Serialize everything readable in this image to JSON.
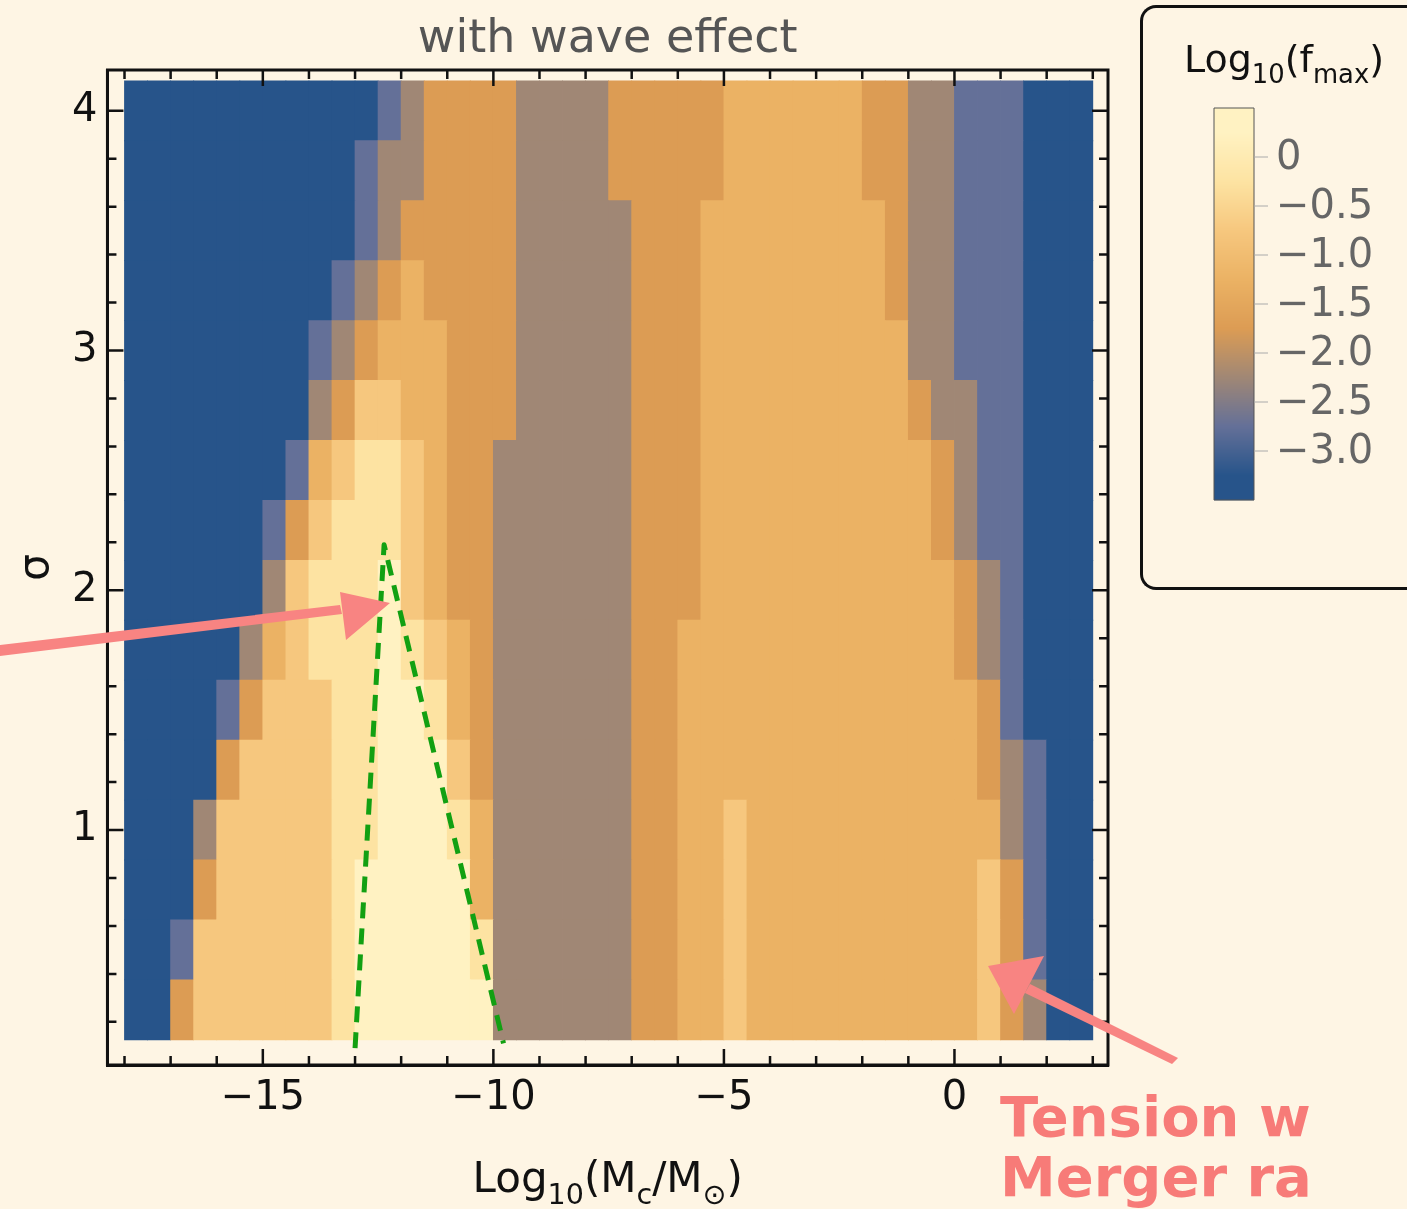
{
  "chart_data": {
    "type": "heatmap",
    "title": "with wave effect",
    "xlabel": "Log$_{10}$(M$_{c}$/M$_{⊙}$)",
    "ylabel": "σ",
    "clabel": "Log$_{10}$(f$_{max}$)",
    "annotations": [
      "Tension w",
      "Merger ra"
    ],
    "xlim": [
      -18.37,
      3.33
    ],
    "ylim": [
      0.02,
      4.17
    ],
    "xticks": [
      {
        "value": -18,
        "label": null
      },
      {
        "value": -17,
        "label": null
      },
      {
        "value": -16,
        "label": null
      },
      {
        "value": -15,
        "label": "−15"
      },
      {
        "value": -14,
        "label": null
      },
      {
        "value": -13,
        "label": null
      },
      {
        "value": -12,
        "label": null
      },
      {
        "value": -11,
        "label": null
      },
      {
        "value": -10,
        "label": "−10"
      },
      {
        "value": -9,
        "label": null
      },
      {
        "value": -8,
        "label": null
      },
      {
        "value": -7,
        "label": null
      },
      {
        "value": -6,
        "label": null
      },
      {
        "value": -5,
        "label": "−5"
      },
      {
        "value": -4,
        "label": null
      },
      {
        "value": -3,
        "label": null
      },
      {
        "value": -2,
        "label": null
      },
      {
        "value": -1,
        "label": null
      },
      0,
      {
        "value": 1,
        "label": null
      },
      {
        "value": 2,
        "label": null
      },
      {
        "value": 3,
        "label": null
      }
    ],
    "yticks": [
      {
        "value": 0.2,
        "label": null
      },
      {
        "value": 0.4,
        "label": null
      },
      {
        "value": 0.6,
        "label": null
      },
      {
        "value": 0.8,
        "label": null
      },
      1,
      {
        "value": 1.2,
        "label": null
      },
      {
        "value": 1.4,
        "label": null
      },
      {
        "value": 1.6,
        "label": null
      },
      {
        "value": 1.8,
        "label": null
      },
      2,
      {
        "value": 2.2,
        "label": null
      },
      {
        "value": 2.4,
        "label": null
      },
      {
        "value": 2.6,
        "label": null
      },
      {
        "value": 2.8,
        "label": null
      },
      3,
      {
        "value": 3.2,
        "label": null
      },
      {
        "value": 3.4,
        "label": null
      },
      {
        "value": 3.6,
        "label": null
      },
      {
        "value": 3.8,
        "label": null
      },
      4
    ],
    "clim": [
      -3.5,
      0.5
    ],
    "cticks": [
      0,
      {
        "value": -0.5,
        "label": "−0.5"
      },
      {
        "value": -1,
        "label": "−1.0"
      },
      {
        "value": -1.5,
        "label": "−1.5"
      },
      {
        "value": -2,
        "label": "−2.0"
      },
      {
        "value": -2.5,
        "label": "−2.5"
      },
      {
        "value": -3,
        "label": "−3.0"
      }
    ],
    "colors": [
      "#27548a",
      "#647098",
      "#a08775",
      "#dc9c54",
      "#ebb264",
      "#f6c77e",
      "#fde3a2",
      "#fff2c2"
    ],
    "x": [
      -17.75,
      -17.25,
      -16.75,
      -16.25,
      -15.75,
      -15.25,
      -14.75,
      -14.25,
      -13.75,
      -13.25,
      -12.75,
      -12.25,
      -11.75,
      -11.25,
      -10.75,
      -10.25,
      -9.75,
      -9.25,
      -8.75,
      -8.25,
      -7.75,
      -7.25,
      -6.75,
      -6.25,
      -5.75,
      -5.25,
      -4.75,
      -4.25,
      -3.75,
      -3.25,
      -2.75,
      -2.25,
      -1.75,
      -1.25,
      -0.75,
      -0.25,
      0.25,
      0.75,
      1.25,
      1.75,
      2.25,
      2.75
    ],
    "y": [
      4,
      3.75,
      3.5,
      3.25,
      3,
      2.75,
      2.5,
      2.25,
      2,
      1.75,
      1.5,
      1.25,
      1,
      0.75,
      0.5,
      0.25
    ],
    "cells": [
      [
        -3.25,
        -3.25,
        -3.25,
        -3.25,
        -3.25,
        -3.25,
        -3.25,
        -3.25,
        -3.25,
        -3.25,
        -3.25,
        -2.75,
        -2.25,
        -1.75,
        -1.75,
        -1.75,
        -1.75,
        -2.25,
        -2.25,
        -2.25,
        -2.25,
        -1.75,
        -1.75,
        -1.75,
        -1.75,
        -1.75,
        -1.25,
        -1.25,
        -1.25,
        -1.25,
        -1.25,
        -1.25,
        -1.75,
        -1.75,
        -2.25,
        -2.25,
        -2.75,
        -2.75,
        -2.75,
        -3.25,
        -3.25,
        -3.25
      ],
      [
        -3.25,
        -3.25,
        -3.25,
        -3.25,
        -3.25,
        -3.25,
        -3.25,
        -3.25,
        -3.25,
        -3.25,
        -2.75,
        -2.25,
        -2.25,
        -1.75,
        -1.75,
        -1.75,
        -1.75,
        -2.25,
        -2.25,
        -2.25,
        -2.25,
        -1.75,
        -1.75,
        -1.75,
        -1.75,
        -1.75,
        -1.25,
        -1.25,
        -1.25,
        -1.25,
        -1.25,
        -1.25,
        -1.75,
        -1.75,
        -2.25,
        -2.25,
        -2.75,
        -2.75,
        -2.75,
        -3.25,
        -3.25,
        -3.25
      ],
      [
        -3.25,
        -3.25,
        -3.25,
        -3.25,
        -3.25,
        -3.25,
        -3.25,
        -3.25,
        -3.25,
        -3.25,
        -2.75,
        -2.25,
        -1.75,
        -1.75,
        -1.75,
        -1.75,
        -1.75,
        -2.25,
        -2.25,
        -2.25,
        -2.25,
        -2.25,
        -1.75,
        -1.75,
        -1.75,
        -1.25,
        -1.25,
        -1.25,
        -1.25,
        -1.25,
        -1.25,
        -1.25,
        -1.25,
        -1.75,
        -2.25,
        -2.25,
        -2.75,
        -2.75,
        -2.75,
        -3.25,
        -3.25,
        -3.25
      ],
      [
        -3.25,
        -3.25,
        -3.25,
        -3.25,
        -3.25,
        -3.25,
        -3.25,
        -3.25,
        -3.25,
        -2.75,
        -2.25,
        -1.75,
        -1.25,
        -1.75,
        -1.75,
        -1.75,
        -1.75,
        -2.25,
        -2.25,
        -2.25,
        -2.25,
        -2.25,
        -1.75,
        -1.75,
        -1.75,
        -1.25,
        -1.25,
        -1.25,
        -1.25,
        -1.25,
        -1.25,
        -1.25,
        -1.25,
        -1.75,
        -2.25,
        -2.25,
        -2.75,
        -2.75,
        -2.75,
        -3.25,
        -3.25,
        -3.25
      ],
      [
        -3.25,
        -3.25,
        -3.25,
        -3.25,
        -3.25,
        -3.25,
        -3.25,
        -3.25,
        -2.75,
        -2.25,
        -1.75,
        -1.25,
        -1.25,
        -1.25,
        -1.75,
        -1.75,
        -1.75,
        -2.25,
        -2.25,
        -2.25,
        -2.25,
        -2.25,
        -1.75,
        -1.75,
        -1.75,
        -1.25,
        -1.25,
        -1.25,
        -1.25,
        -1.25,
        -1.25,
        -1.25,
        -1.25,
        -1.25,
        -2.25,
        -2.25,
        -2.75,
        -2.75,
        -2.75,
        -3.25,
        -3.25,
        -3.25
      ],
      [
        -3.25,
        -3.25,
        -3.25,
        -3.25,
        -3.25,
        -3.25,
        -3.25,
        -3.25,
        -2.25,
        -1.75,
        -0.75,
        -0.75,
        -1.25,
        -1.25,
        -1.75,
        -1.75,
        -1.75,
        -2.25,
        -2.25,
        -2.25,
        -2.25,
        -2.25,
        -1.75,
        -1.75,
        -1.75,
        -1.25,
        -1.25,
        -1.25,
        -1.25,
        -1.25,
        -1.25,
        -1.25,
        -1.25,
        -1.25,
        -1.75,
        -2.25,
        -2.25,
        -2.75,
        -2.75,
        -3.25,
        -3.25,
        -3.25
      ],
      [
        -3.25,
        -3.25,
        -3.25,
        -3.25,
        -3.25,
        -3.25,
        -3.25,
        -2.75,
        -1.25,
        -0.75,
        -0.25,
        -0.25,
        -0.75,
        -1.25,
        -1.75,
        -1.75,
        -2.25,
        -2.25,
        -2.25,
        -2.25,
        -2.25,
        -2.25,
        -1.75,
        -1.75,
        -1.75,
        -1.25,
        -1.25,
        -1.25,
        -1.25,
        -1.25,
        -1.25,
        -1.25,
        -1.25,
        -1.25,
        -1.25,
        -1.75,
        -2.25,
        -2.75,
        -2.75,
        -3.25,
        -3.25,
        -3.25
      ],
      [
        -3.25,
        -3.25,
        -3.25,
        -3.25,
        -3.25,
        -3.25,
        -2.75,
        -1.75,
        -0.75,
        -0.25,
        -0.25,
        -0.25,
        -0.75,
        -1.25,
        -1.75,
        -1.75,
        -2.25,
        -2.25,
        -2.25,
        -2.25,
        -2.25,
        -2.25,
        -1.75,
        -1.75,
        -1.75,
        -1.25,
        -1.25,
        -1.25,
        -1.25,
        -1.25,
        -1.25,
        -1.25,
        -1.25,
        -1.25,
        -1.25,
        -1.75,
        -2.25,
        -2.75,
        -2.75,
        -3.25,
        -3.25,
        -3.25
      ],
      [
        -3.25,
        -3.25,
        -3.25,
        -3.25,
        -3.25,
        -3.25,
        -2.25,
        -0.75,
        -0.25,
        -0.25,
        -0.25,
        0.25,
        -0.75,
        -1.25,
        -1.75,
        -1.75,
        -2.25,
        -2.25,
        -2.25,
        -2.25,
        -2.25,
        -2.25,
        -1.75,
        -1.75,
        -1.75,
        -1.25,
        -1.25,
        -1.25,
        -1.25,
        -1.25,
        -1.25,
        -1.25,
        -1.25,
        -1.25,
        -1.25,
        -1.25,
        -1.75,
        -2.25,
        -2.75,
        -3.25,
        -3.25,
        -3.25
      ],
      [
        -3.25,
        -3.25,
        -3.25,
        -3.25,
        -3.25,
        -2.25,
        -1.25,
        -0.75,
        -0.25,
        -0.25,
        -0.25,
        0.25,
        -0.25,
        -0.75,
        -1.25,
        -1.75,
        -2.25,
        -2.25,
        -2.25,
        -2.25,
        -2.25,
        -2.25,
        -1.75,
        -1.75,
        -1.25,
        -1.25,
        -1.25,
        -1.25,
        -1.25,
        -1.25,
        -1.25,
        -1.25,
        -1.25,
        -1.25,
        -1.25,
        -1.25,
        -1.75,
        -2.25,
        -2.75,
        -3.25,
        -3.25,
        -3.25
      ],
      [
        -3.25,
        -3.25,
        -3.25,
        -3.25,
        -2.75,
        -1.75,
        -0.75,
        -0.75,
        -0.75,
        -0.25,
        -0.25,
        0.25,
        0.25,
        -0.25,
        -1.25,
        -1.75,
        -2.25,
        -2.25,
        -2.25,
        -2.25,
        -2.25,
        -2.25,
        -1.75,
        -1.75,
        -1.25,
        -1.25,
        -1.25,
        -1.25,
        -1.25,
        -1.25,
        -1.25,
        -1.25,
        -1.25,
        -1.25,
        -1.25,
        -1.25,
        -1.25,
        -1.75,
        -2.75,
        -3.25,
        -3.25,
        -3.25
      ],
      [
        -3.25,
        -3.25,
        -3.25,
        -3.25,
        -1.75,
        -0.75,
        -0.75,
        -0.75,
        -0.75,
        -0.25,
        -0.25,
        0.25,
        0.25,
        0.25,
        -0.75,
        -1.75,
        -2.25,
        -2.25,
        -2.25,
        -2.25,
        -2.25,
        -2.25,
        -1.75,
        -1.75,
        -1.25,
        -1.25,
        -1.25,
        -1.25,
        -1.25,
        -1.25,
        -1.25,
        -1.25,
        -1.25,
        -1.25,
        -1.25,
        -1.25,
        -1.25,
        -1.75,
        -2.25,
        -2.75,
        -3.25,
        -3.25
      ],
      [
        -3.25,
        -3.25,
        -3.25,
        -2.25,
        -0.75,
        -0.75,
        -0.75,
        -0.75,
        -0.75,
        -0.25,
        -0.25,
        0.25,
        0.25,
        0.25,
        -0.25,
        -1.25,
        -2.25,
        -2.25,
        -2.25,
        -2.25,
        -2.25,
        -2.25,
        -1.75,
        -1.75,
        -1.25,
        -1.25,
        -0.75,
        -1.25,
        -1.25,
        -1.25,
        -1.25,
        -1.25,
        -1.25,
        -1.25,
        -1.25,
        -1.25,
        -1.25,
        -1.25,
        -2.25,
        -2.75,
        -3.25,
        -3.25
      ],
      [
        -3.25,
        -3.25,
        -3.25,
        -1.75,
        -0.75,
        -0.75,
        -0.75,
        -0.75,
        -0.75,
        -0.25,
        0.25,
        0.25,
        0.25,
        0.25,
        0.25,
        -1.25,
        -2.25,
        -2.25,
        -2.25,
        -2.25,
        -2.25,
        -2.25,
        -1.75,
        -1.75,
        -1.25,
        -1.25,
        -0.75,
        -1.25,
        -1.25,
        -1.25,
        -1.25,
        -1.25,
        -1.25,
        -1.25,
        -1.25,
        -1.25,
        -1.25,
        -0.75,
        -1.75,
        -2.75,
        -3.25,
        -3.25
      ],
      [
        -3.25,
        -3.25,
        -2.75,
        -0.75,
        -0.75,
        -0.75,
        -0.75,
        -0.75,
        -0.75,
        -0.25,
        0.25,
        0.25,
        0.25,
        0.25,
        0.25,
        -0.25,
        -2.25,
        -2.25,
        -2.25,
        -2.25,
        -2.25,
        -2.25,
        -1.75,
        -1.75,
        -1.25,
        -1.25,
        -0.75,
        -1.25,
        -1.25,
        -1.25,
        -1.25,
        -1.25,
        -1.25,
        -1.25,
        -1.25,
        -1.25,
        -1.25,
        -0.75,
        -1.75,
        -2.75,
        -3.25,
        -3.25
      ],
      [
        -3.25,
        -3.25,
        -1.75,
        -0.75,
        -0.75,
        -0.75,
        -0.75,
        -0.75,
        -0.75,
        -0.25,
        0.25,
        0.25,
        0.25,
        0.25,
        0.25,
        0.25,
        -2.25,
        -2.25,
        -2.25,
        -2.25,
        -2.25,
        -2.25,
        -1.75,
        -1.75,
        -1.25,
        -1.25,
        -0.75,
        -1.25,
        -1.25,
        -1.25,
        -1.25,
        -1.25,
        -1.25,
        -1.25,
        -1.25,
        -1.25,
        -1.25,
        -0.75,
        -1.75,
        -2.25,
        -3.25,
        -3.25
      ]
    ],
    "series": [
      {
        "type": "line",
        "color": "#12a012",
        "line_style": "dashed",
        "marker": "none",
        "x": [
          -13.0,
          -12.37,
          -9.78
        ],
        "values": [
          0.09,
          2.19,
          0.11
        ]
      }
    ]
  }
}
